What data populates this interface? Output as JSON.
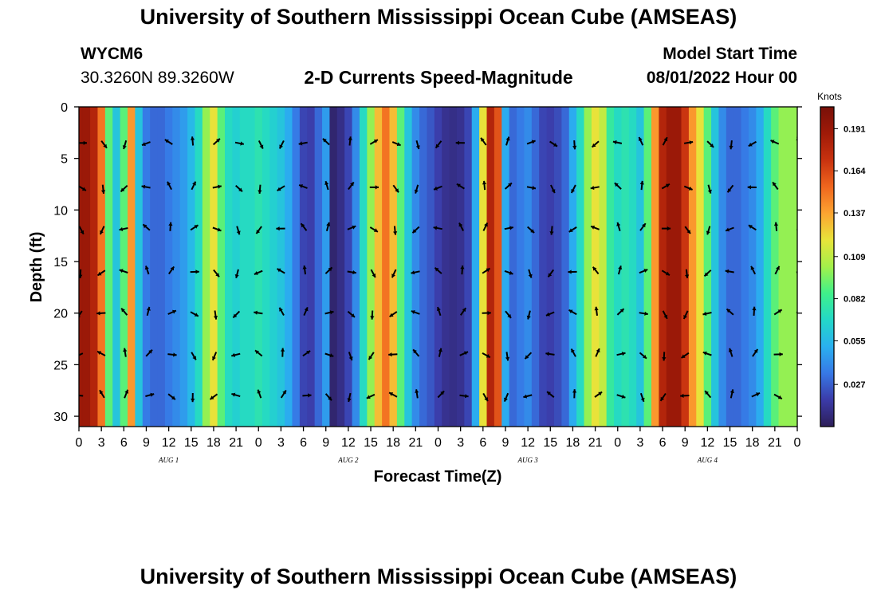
{
  "header": {
    "title": "University of Southern Mississippi Ocean Cube (AMSEAS)",
    "station": "WYCM6",
    "coords": "30.3260N  89.3260W",
    "chart_title": "2-D Currents Speed-Magnitude",
    "model_start_label": "Model Start Time",
    "model_start_value": "08/01/2022 Hour 00",
    "bottom_title": "University of Southern Mississippi Ocean Cube (AMSEAS)"
  },
  "chart_data": {
    "type": "heatmap",
    "title": "2-D Currents Speed-Magnitude",
    "xlabel": "Forecast Time(Z)",
    "ylabel": "Depth (ft)",
    "x_range_hours": [
      0,
      96
    ],
    "ylim": [
      0,
      31
    ],
    "x_tick_labels": [
      "0",
      "3",
      "6",
      "9",
      "12",
      "15",
      "18",
      "21",
      "0",
      "3",
      "6",
      "9",
      "12",
      "15",
      "18",
      "21",
      "0",
      "3",
      "6",
      "9",
      "12",
      "15",
      "18",
      "21",
      "0",
      "3",
      "6",
      "9",
      "12",
      "15",
      "18",
      "21",
      "0"
    ],
    "y_ticks": [
      0,
      5,
      10,
      15,
      20,
      25,
      30
    ],
    "y_tick_labels": [
      "0",
      "5",
      "10",
      "15",
      "20",
      "25",
      "30"
    ],
    "day_labels": [
      {
        "label": "AUG 1",
        "hour": 12
      },
      {
        "label": "AUG 2",
        "hour": 36
      },
      {
        "label": "AUG 3",
        "hour": 60
      },
      {
        "label": "AUG 4",
        "hour": 84
      }
    ],
    "colorbar": {
      "unit": "Knots",
      "min": 0.0,
      "max": 0.205,
      "tick_labels": [
        "0.191",
        "0.164",
        "0.137",
        "0.109",
        "0.082",
        "0.055",
        "0.027"
      ],
      "tick_values": [
        0.191,
        0.164,
        0.137,
        0.109,
        0.082,
        0.055,
        0.027
      ]
    },
    "speed_profile_by_hour": {
      "hours": [
        0,
        1,
        2,
        3,
        4,
        5,
        6,
        7,
        8,
        9,
        10,
        11,
        12,
        13,
        14,
        15,
        16,
        17,
        18,
        19,
        20,
        21,
        22,
        23,
        24,
        25,
        26,
        27,
        28,
        29,
        30,
        31,
        32,
        33,
        34,
        35,
        36,
        37,
        38,
        39,
        40,
        41,
        42,
        43,
        44,
        45,
        46,
        47,
        48,
        49,
        50,
        51,
        52,
        53,
        54,
        55,
        56,
        57,
        58,
        59,
        60,
        61,
        62,
        63,
        64,
        65,
        66,
        67,
        68,
        69,
        70,
        71,
        72,
        73,
        74,
        75,
        76,
        77,
        78,
        79,
        80,
        81,
        82,
        83,
        84,
        85,
        86,
        87,
        88,
        89,
        90,
        91,
        92,
        93,
        94,
        95,
        96
      ],
      "speed_knots": [
        0.19,
        0.19,
        0.18,
        0.15,
        0.09,
        0.06,
        0.09,
        0.14,
        0.06,
        0.035,
        0.03,
        0.03,
        0.035,
        0.04,
        0.045,
        0.055,
        0.07,
        0.1,
        0.12,
        0.09,
        0.07,
        0.065,
        0.07,
        0.07,
        0.075,
        0.07,
        0.065,
        0.06,
        0.05,
        0.035,
        0.02,
        0.018,
        0.03,
        0.045,
        0.005,
        0.01,
        0.02,
        0.04,
        0.07,
        0.1,
        0.13,
        0.15,
        0.13,
        0.09,
        0.06,
        0.04,
        0.03,
        0.025,
        0.018,
        0.012,
        0.01,
        0.012,
        0.02,
        0.05,
        0.12,
        0.18,
        0.16,
        0.05,
        0.03,
        0.035,
        0.04,
        0.03,
        0.02,
        0.018,
        0.022,
        0.03,
        0.05,
        0.07,
        0.1,
        0.12,
        0.11,
        0.08,
        0.07,
        0.075,
        0.07,
        0.06,
        0.09,
        0.14,
        0.18,
        0.19,
        0.19,
        0.17,
        0.14,
        0.12,
        0.09,
        0.06,
        0.04,
        0.03,
        0.03,
        0.035,
        0.04,
        0.05,
        0.07,
        0.09,
        0.1,
        0.1,
        0.1
      ]
    },
    "arrow_depths_ft": [
      3.5,
      7.8,
      11.8,
      16,
      20,
      24,
      28
    ],
    "arrow_hours": [
      0,
      3,
      6,
      9,
      12,
      15,
      18,
      21,
      24,
      27,
      30,
      33,
      36,
      39,
      42,
      45,
      48,
      51,
      54,
      57,
      60,
      63,
      66,
      69,
      72,
      75,
      78,
      81,
      84,
      87,
      90,
      93,
      96
    ]
  },
  "colors": {
    "frame": "#000000",
    "colormap": [
      "#2d1e58",
      "#3b3ba8",
      "#3778e6",
      "#2ab0f0",
      "#23d8c8",
      "#3ff08a",
      "#a3f04a",
      "#e8e43a",
      "#fca431",
      "#f0661e",
      "#c8320f",
      "#a01a08",
      "#781008"
    ]
  }
}
